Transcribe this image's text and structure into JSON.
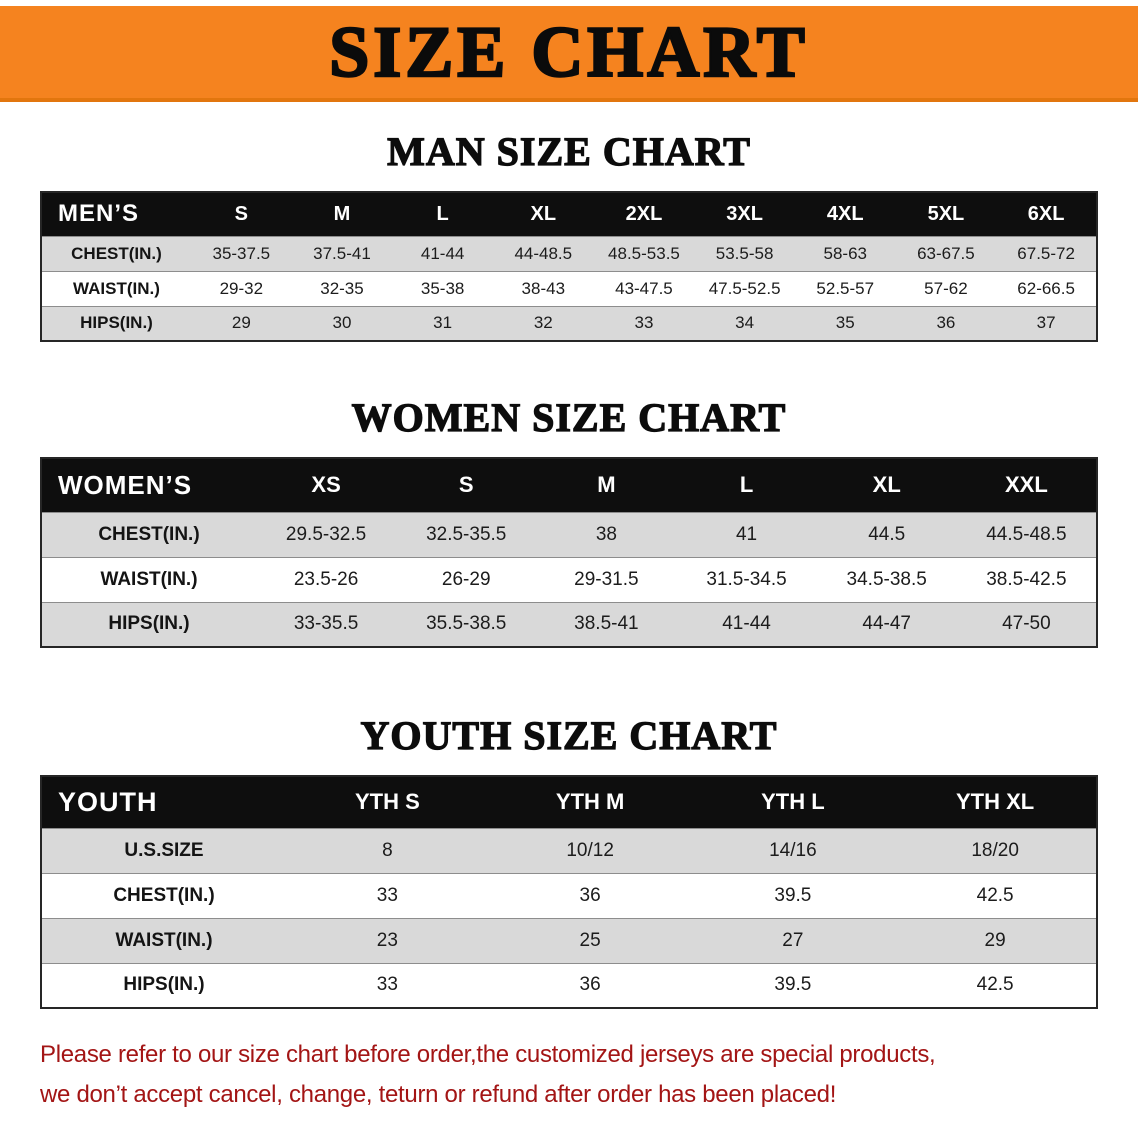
{
  "banner": {
    "title": "SIZE CHART",
    "bg_color": "#F5831F"
  },
  "sections": [
    {
      "id": "men",
      "heading": "MAN SIZE CHART",
      "table": {
        "label": "MEN’S",
        "columns": [
          "S",
          "M",
          "L",
          "XL",
          "2XL",
          "3XL",
          "4XL",
          "5XL",
          "6XL"
        ],
        "rows": [
          {
            "label": "CHEST(IN.)",
            "values": [
              "35-37.5",
              "37.5-41",
              "41-44",
              "44-48.5",
              "48.5-53.5",
              "53.5-58",
              "58-63",
              "63-67.5",
              "67.5-72"
            ]
          },
          {
            "label": "WAIST(IN.)",
            "values": [
              "29-32",
              "32-35",
              "35-38",
              "38-43",
              "43-47.5",
              "47.5-52.5",
              "52.5-57",
              "57-62",
              "62-66.5"
            ]
          },
          {
            "label": "HIPS(IN.)",
            "values": [
              "29",
              "30",
              "31",
              "32",
              "33",
              "34",
              "35",
              "36",
              "37"
            ]
          }
        ]
      }
    },
    {
      "id": "women",
      "heading": "WOMEN SIZE CHART",
      "table": {
        "label": "WOMEN’S",
        "columns": [
          "XS",
          "S",
          "M",
          "L",
          "XL",
          "XXL"
        ],
        "rows": [
          {
            "label": "CHEST(IN.)",
            "values": [
              "29.5-32.5",
              "32.5-35.5",
              "38",
              "41",
              "44.5",
              "44.5-48.5"
            ]
          },
          {
            "label": "WAIST(IN.)",
            "values": [
              "23.5-26",
              "26-29",
              "29-31.5",
              "31.5-34.5",
              "34.5-38.5",
              "38.5-42.5"
            ]
          },
          {
            "label": "HIPS(IN.)",
            "values": [
              "33-35.5",
              "35.5-38.5",
              "38.5-41",
              "41-44",
              "44-47",
              "47-50"
            ]
          }
        ]
      }
    },
    {
      "id": "youth",
      "heading": "YOUTH SIZE CHART",
      "table": {
        "label": "YOUTH",
        "columns": [
          "YTH S",
          "YTH M",
          "YTH L",
          "YTH XL"
        ],
        "rows": [
          {
            "label": "U.S.SIZE",
            "values": [
              "8",
              "10/12",
              "14/16",
              "18/20"
            ]
          },
          {
            "label": "CHEST(IN.)",
            "values": [
              "33",
              "36",
              "39.5",
              "42.5"
            ]
          },
          {
            "label": "WAIST(IN.)",
            "values": [
              "23",
              "25",
              "27",
              "29"
            ]
          },
          {
            "label": "HIPS(IN.)",
            "values": [
              "33",
              "36",
              "39.5",
              "42.5"
            ]
          }
        ]
      }
    }
  ],
  "disclaimer": {
    "line1": "Please refer to our size chart before order,the customized jerseys are special products,",
    "line2": "we don’t accept cancel, change, teturn or refund after order has been placed!",
    "color": "#a31515"
  }
}
